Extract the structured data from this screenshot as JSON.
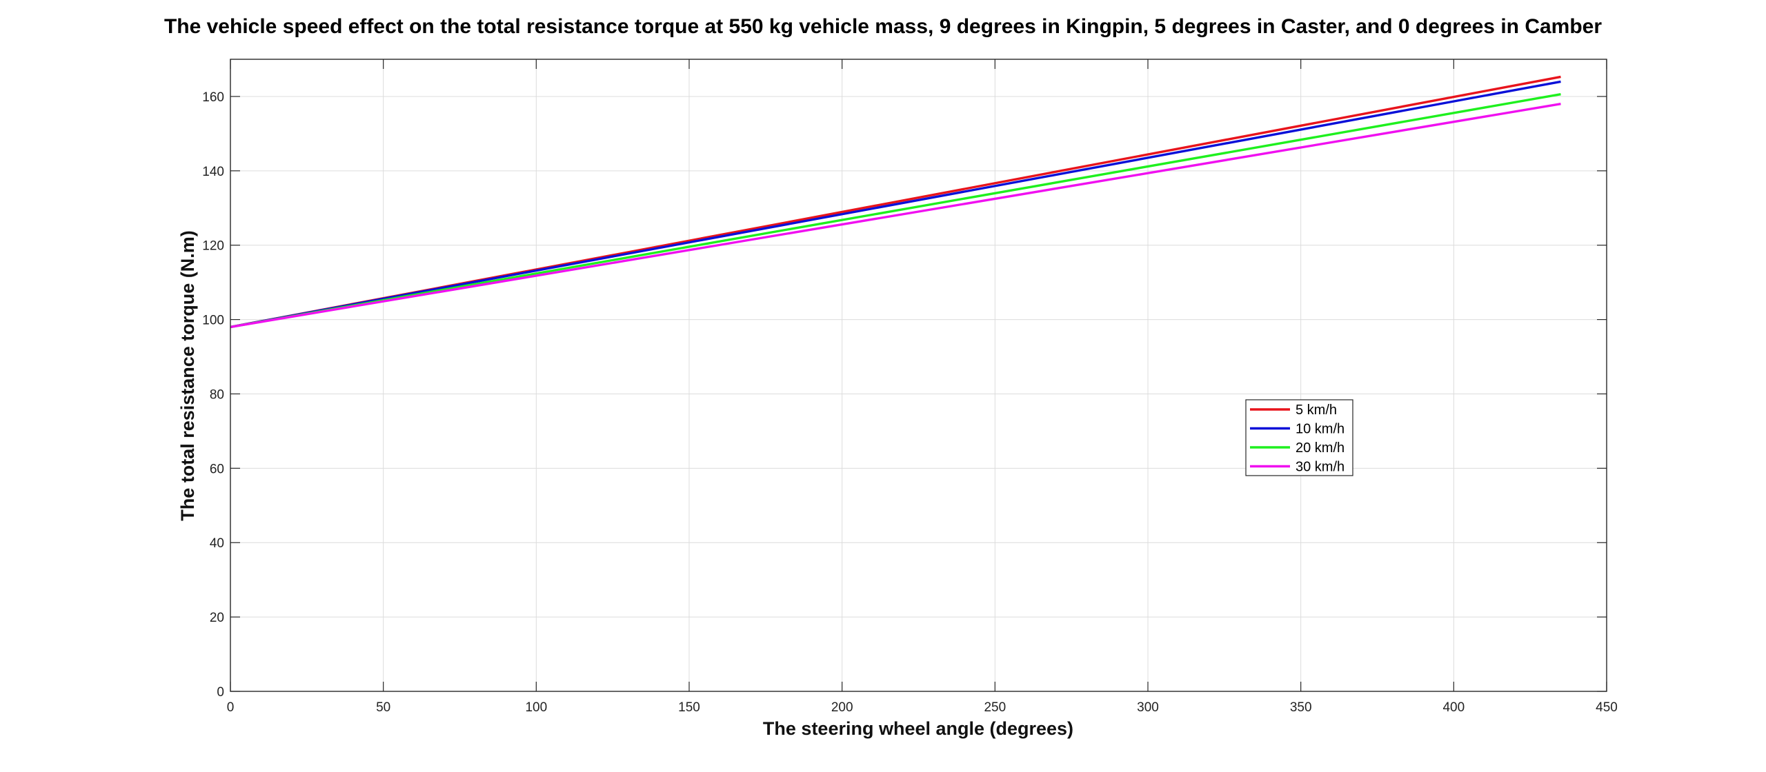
{
  "chart_data": {
    "type": "line",
    "title": "The vehicle speed effect on the total resistance torque at 550 kg vehicle mass, 9 degrees in Kingpin, 5 degrees in Caster, and 0 degrees in Camber",
    "xlabel": "The steering wheel angle (degrees)",
    "ylabel": "The total resistance torque (N.m)",
    "xlim": [
      0,
      450
    ],
    "ylim": [
      0,
      170
    ],
    "xticks": [
      0,
      50,
      100,
      150,
      200,
      250,
      300,
      350,
      400,
      450
    ],
    "yticks": [
      0,
      20,
      40,
      60,
      80,
      100,
      120,
      140,
      160
    ],
    "grid": true,
    "legend_position": "center-right",
    "series": [
      {
        "name": "5 km/h",
        "color": "#e8141c",
        "x": [
          0,
          435
        ],
        "y": [
          98,
          165.3
        ]
      },
      {
        "name": "10 km/h",
        "color": "#0a10d8",
        "x": [
          0,
          435
        ],
        "y": [
          98,
          164.0
        ]
      },
      {
        "name": "20 km/h",
        "color": "#1ef01e",
        "x": [
          0,
          435
        ],
        "y": [
          98,
          160.6
        ]
      },
      {
        "name": "30 km/h",
        "color": "#f010f0",
        "x": [
          0,
          435
        ],
        "y": [
          98,
          158.0
        ]
      }
    ]
  }
}
